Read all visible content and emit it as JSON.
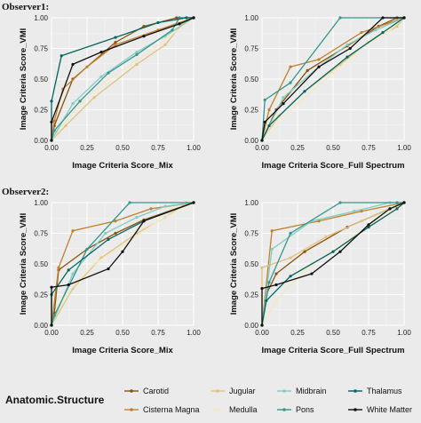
{
  "observer1_label": "Observer1:",
  "observer2_label": "Observer2:",
  "legend": {
    "title": "Anatomic.Structure",
    "items": [
      {
        "name": "Carotid",
        "color": "#8c510a"
      },
      {
        "name": "Cisterna Magna",
        "color": "#bf812d"
      },
      {
        "name": "Jugular",
        "color": "#dfc27d"
      },
      {
        "name": "Medulla",
        "color": "#f6e8c3"
      },
      {
        "name": "Midbrain",
        "color": "#80cdc1"
      },
      {
        "name": "Pons",
        "color": "#35978f"
      },
      {
        "name": "Thalamus",
        "color": "#01665e"
      },
      {
        "name": "White Matter",
        "color": "#111111"
      }
    ]
  },
  "chart_data": [
    {
      "type": "line",
      "panel": "Observer1: Mix",
      "xlabel": "Image Criteria Score_Mix",
      "ylabel": "Image Criteria Score_VMI",
      "xlim": [
        0,
        1
      ],
      "ylim": [
        0,
        1
      ],
      "xticks": [
        "0.00",
        "0.25",
        "0.50",
        "0.75",
        "1.00"
      ],
      "yticks": [
        "0.00",
        "0.25",
        "0.50",
        "0.75",
        "1.00"
      ],
      "series": [
        {
          "name": "Carotid",
          "points": [
            [
              0,
              0
            ],
            [
              0.02,
              0.12
            ],
            [
              0.15,
              0.5
            ],
            [
              0.45,
              0.8
            ],
            [
              0.65,
              0.93
            ],
            [
              0.88,
              1
            ],
            [
              1,
              1
            ]
          ]
        },
        {
          "name": "Cisterna Magna",
          "points": [
            [
              0,
              0
            ],
            [
              0.02,
              0.16
            ],
            [
              0.08,
              0.42
            ],
            [
              0.25,
              0.6
            ],
            [
              0.45,
              0.78
            ],
            [
              0.75,
              0.9
            ],
            [
              1,
              1
            ]
          ]
        },
        {
          "name": "Jugular",
          "points": [
            [
              0,
              0
            ],
            [
              0.1,
              0.12
            ],
            [
              0.3,
              0.35
            ],
            [
              0.6,
              0.62
            ],
            [
              0.8,
              0.78
            ],
            [
              0.92,
              0.95
            ],
            [
              1,
              1
            ]
          ]
        },
        {
          "name": "Medulla",
          "points": [
            [
              0,
              0
            ],
            [
              0.05,
              0.08
            ],
            [
              0.2,
              0.3
            ],
            [
              0.4,
              0.5
            ],
            [
              0.6,
              0.65
            ],
            [
              0.78,
              0.8
            ],
            [
              1,
              1
            ]
          ]
        },
        {
          "name": "Midbrain",
          "points": [
            [
              0,
              0
            ],
            [
              0.15,
              0.3
            ],
            [
              0.35,
              0.52
            ],
            [
              0.6,
              0.72
            ],
            [
              0.8,
              0.85
            ],
            [
              1,
              1
            ]
          ]
        },
        {
          "name": "Pons",
          "points": [
            [
              0,
              0
            ],
            [
              0.02,
              0.08
            ],
            [
              0.2,
              0.32
            ],
            [
              0.4,
              0.55
            ],
            [
              0.6,
              0.7
            ],
            [
              0.85,
              0.9
            ],
            [
              0.9,
              1
            ],
            [
              1,
              1
            ]
          ]
        },
        {
          "name": "Thalamus",
          "points": [
            [
              0,
              0
            ],
            [
              0,
              0.32
            ],
            [
              0.07,
              0.69
            ],
            [
              0.45,
              0.84
            ],
            [
              0.75,
              0.96
            ],
            [
              0.95,
              1
            ],
            [
              1,
              1
            ]
          ]
        },
        {
          "name": "White Matter",
          "points": [
            [
              0,
              0
            ],
            [
              0,
              0.15
            ],
            [
              0.15,
              0.62
            ],
            [
              0.35,
              0.72
            ],
            [
              0.65,
              0.85
            ],
            [
              0.9,
              0.95
            ],
            [
              1,
              1
            ]
          ]
        }
      ]
    },
    {
      "type": "line",
      "panel": "Observer1: Full Spectrum",
      "xlabel": "Image Criteria Score_Full Spectrum",
      "ylabel": "Image Criteria Score_VMI",
      "xlim": [
        0,
        1
      ],
      "ylim": [
        0,
        1
      ],
      "xticks": [
        "0.00",
        "0.25",
        "0.50",
        "0.75",
        "1.00"
      ],
      "yticks": [
        "0.00",
        "0.25",
        "0.50",
        "0.75",
        "1.00"
      ],
      "series": [
        {
          "name": "Carotid",
          "points": [
            [
              0,
              0
            ],
            [
              0.1,
              0.25
            ],
            [
              0.32,
              0.57
            ],
            [
              0.6,
              0.77
            ],
            [
              0.82,
              0.93
            ],
            [
              0.95,
              1
            ],
            [
              1,
              1
            ]
          ]
        },
        {
          "name": "Cisterna Magna",
          "points": [
            [
              0,
              0
            ],
            [
              0.05,
              0.25
            ],
            [
              0.2,
              0.6
            ],
            [
              0.4,
              0.66
            ],
            [
              0.7,
              0.88
            ],
            [
              1,
              1
            ]
          ]
        },
        {
          "name": "Jugular",
          "points": [
            [
              0,
              0
            ],
            [
              0.12,
              0.2
            ],
            [
              0.3,
              0.4
            ],
            [
              0.55,
              0.62
            ],
            [
              0.75,
              0.8
            ],
            [
              0.95,
              0.93
            ],
            [
              1,
              1
            ]
          ]
        },
        {
          "name": "Medulla",
          "points": [
            [
              0,
              0
            ],
            [
              0.1,
              0.15
            ],
            [
              0.25,
              0.3
            ],
            [
              0.5,
              0.55
            ],
            [
              0.7,
              0.75
            ],
            [
              0.9,
              0.9
            ],
            [
              1,
              1
            ]
          ]
        },
        {
          "name": "Midbrain",
          "points": [
            [
              0,
              0
            ],
            [
              0.15,
              0.35
            ],
            [
              0.4,
              0.6
            ],
            [
              0.6,
              0.78
            ],
            [
              0.8,
              0.9
            ],
            [
              1,
              1
            ]
          ]
        },
        {
          "name": "Pons",
          "points": [
            [
              0,
              0
            ],
            [
              0.02,
              0.33
            ],
            [
              0.2,
              0.47
            ],
            [
              0.55,
              1
            ],
            [
              1,
              1
            ]
          ]
        },
        {
          "name": "Thalamus",
          "points": [
            [
              0,
              0
            ],
            [
              0.05,
              0.12
            ],
            [
              0.3,
              0.4
            ],
            [
              0.6,
              0.68
            ],
            [
              0.85,
              0.88
            ],
            [
              1,
              1
            ]
          ]
        },
        {
          "name": "White Matter",
          "points": [
            [
              0,
              0
            ],
            [
              0.02,
              0.15
            ],
            [
              0.15,
              0.3
            ],
            [
              0.4,
              0.6
            ],
            [
              0.62,
              0.75
            ],
            [
              0.85,
              1
            ],
            [
              1,
              1
            ]
          ]
        }
      ]
    },
    {
      "type": "line",
      "panel": "Observer2: Mix",
      "xlabel": "Image Criteria Score_Mix",
      "ylabel": "Image Criteria Score_VMI",
      "xlim": [
        0,
        1
      ],
      "ylim": [
        0,
        1
      ],
      "xticks": [
        "0.00",
        "0.25",
        "0.50",
        "0.75",
        "1.00"
      ],
      "yticks": [
        "0.00",
        "0.25",
        "0.50",
        "0.75",
        "1.00"
      ],
      "series": [
        {
          "name": "Carotid",
          "points": [
            [
              0,
              0
            ],
            [
              0.02,
              0.1
            ],
            [
              0.05,
              0.45
            ],
            [
              0.25,
              0.62
            ],
            [
              0.45,
              0.75
            ],
            [
              0.65,
              0.86
            ],
            [
              1,
              1
            ]
          ]
        },
        {
          "name": "Cisterna Magna",
          "points": [
            [
              0,
              0
            ],
            [
              0.05,
              0.47
            ],
            [
              0.15,
              0.77
            ],
            [
              0.45,
              0.85
            ],
            [
              0.7,
              0.95
            ],
            [
              1,
              1
            ]
          ]
        },
        {
          "name": "Jugular",
          "points": [
            [
              0,
              0
            ],
            [
              0.15,
              0.3
            ],
            [
              0.35,
              0.55
            ],
            [
              0.6,
              0.75
            ],
            [
              0.8,
              0.88
            ],
            [
              0.95,
              1
            ],
            [
              1,
              1
            ]
          ]
        },
        {
          "name": "Medulla",
          "points": [
            [
              0,
              0
            ],
            [
              0.1,
              0.25
            ],
            [
              0.3,
              0.5
            ],
            [
              0.5,
              0.65
            ],
            [
              0.75,
              0.85
            ],
            [
              1,
              1
            ]
          ]
        },
        {
          "name": "Midbrain",
          "points": [
            [
              0,
              0
            ],
            [
              0.15,
              0.42
            ],
            [
              0.38,
              0.75
            ],
            [
              0.6,
              0.88
            ],
            [
              0.8,
              0.97
            ],
            [
              1,
              1
            ]
          ]
        },
        {
          "name": "Pons",
          "points": [
            [
              0,
              0
            ],
            [
              0.02,
              0.08
            ],
            [
              0.25,
              0.62
            ],
            [
              0.55,
              1
            ],
            [
              1,
              1
            ]
          ]
        },
        {
          "name": "Thalamus",
          "points": [
            [
              0,
              0
            ],
            [
              0,
              0.25
            ],
            [
              0.12,
              0.45
            ],
            [
              0.4,
              0.7
            ],
            [
              0.65,
              0.85
            ],
            [
              1,
              1
            ]
          ]
        },
        {
          "name": "White Matter",
          "points": [
            [
              0,
              0
            ],
            [
              0,
              0.31
            ],
            [
              0.12,
              0.33
            ],
            [
              0.4,
              0.46
            ],
            [
              0.5,
              0.6
            ],
            [
              0.65,
              0.85
            ],
            [
              1,
              1
            ]
          ]
        }
      ]
    },
    {
      "type": "line",
      "panel": "Observer2: Full Spectrum",
      "xlabel": "Image Criteria Score_Full Spectrum",
      "ylabel": "Image Criteria Score_VMI",
      "xlim": [
        0,
        1
      ],
      "ylim": [
        0,
        1
      ],
      "xticks": [
        "0.00",
        "0.25",
        "0.50",
        "0.75",
        "1.00"
      ],
      "yticks": [
        "0.00",
        "0.25",
        "0.50",
        "0.75",
        "1.00"
      ],
      "series": [
        {
          "name": "Carotid",
          "points": [
            [
              0,
              0
            ],
            [
              0.03,
              0.25
            ],
            [
              0.1,
              0.42
            ],
            [
              0.3,
              0.6
            ],
            [
              0.6,
              0.8
            ],
            [
              0.9,
              0.95
            ],
            [
              1,
              1
            ]
          ]
        },
        {
          "name": "Cisterna Magna",
          "points": [
            [
              0,
              0
            ],
            [
              0.07,
              0.77
            ],
            [
              0.4,
              0.85
            ],
            [
              0.7,
              0.93
            ],
            [
              1,
              1
            ]
          ]
        },
        {
          "name": "Jugular",
          "points": [
            [
              0,
              0
            ],
            [
              0,
              0.47
            ],
            [
              0.2,
              0.55
            ],
            [
              0.45,
              0.72
            ],
            [
              0.7,
              0.85
            ],
            [
              1,
              1
            ]
          ]
        },
        {
          "name": "Medulla",
          "points": [
            [
              0,
              0
            ],
            [
              0.1,
              0.2
            ],
            [
              0.3,
              0.45
            ],
            [
              0.55,
              0.65
            ],
            [
              0.8,
              0.85
            ],
            [
              1,
              1
            ]
          ]
        },
        {
          "name": "Midbrain",
          "points": [
            [
              0,
              0
            ],
            [
              0.07,
              0.62
            ],
            [
              0.35,
              0.85
            ],
            [
              0.65,
              0.93
            ],
            [
              0.9,
              1
            ],
            [
              1,
              1
            ]
          ]
        },
        {
          "name": "Pons",
          "points": [
            [
              0,
              0
            ],
            [
              0.05,
              0.35
            ],
            [
              0.2,
              0.75
            ],
            [
              0.55,
              1
            ],
            [
              0.95,
              1
            ],
            [
              1,
              1
            ]
          ]
        },
        {
          "name": "Thalamus",
          "points": [
            [
              0,
              0
            ],
            [
              0.03,
              0.2
            ],
            [
              0.2,
              0.4
            ],
            [
              0.5,
              0.6
            ],
            [
              0.75,
              0.8
            ],
            [
              0.95,
              0.95
            ],
            [
              1,
              1
            ]
          ]
        },
        {
          "name": "White Matter",
          "points": [
            [
              0,
              0
            ],
            [
              0,
              0.3
            ],
            [
              0.1,
              0.33
            ],
            [
              0.35,
              0.42
            ],
            [
              0.55,
              0.6
            ],
            [
              0.75,
              0.82
            ],
            [
              0.9,
              0.95
            ],
            [
              1,
              1
            ]
          ]
        }
      ]
    }
  ]
}
